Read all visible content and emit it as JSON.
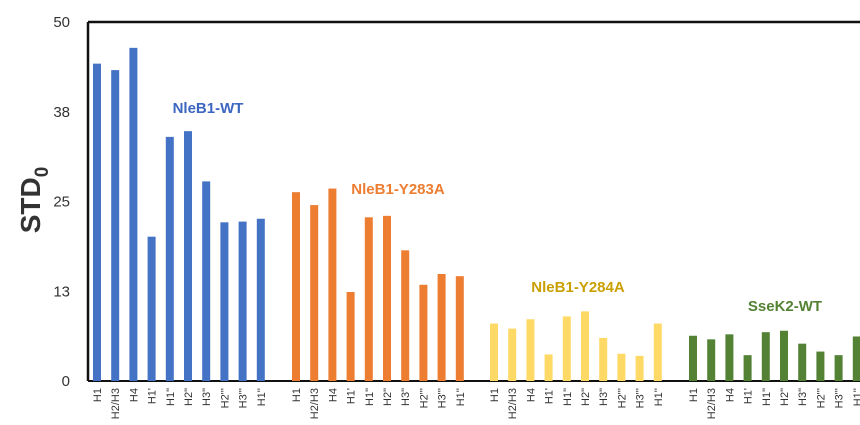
{
  "chart_data": {
    "type": "bar",
    "ylabel": "STD",
    "ylabel_subscript": "0",
    "ylim": [
      0,
      50
    ],
    "yticks": [
      "0",
      "13",
      "25",
      "38",
      "50"
    ],
    "ytick_values": [
      0,
      12.5,
      25,
      37.5,
      50
    ],
    "categories": [
      "H1",
      "H2/H3",
      "H4",
      "H1'",
      "H1\"",
      "H2\"",
      "H3\"",
      "H2'''",
      "H3'''",
      "H1''"
    ],
    "series": [
      {
        "name": "NleB1-WT",
        "color": "#4472C4",
        "label_color": "#3C66C0",
        "values": [
          44.2,
          43.3,
          46.4,
          20.1,
          34.0,
          34.8,
          27.8,
          22.1,
          22.2,
          22.6
        ]
      },
      {
        "name": "NleB1-Y283A",
        "color": "#ED7D31",
        "label_color": "#ED7D31",
        "values": [
          26.3,
          24.5,
          26.8,
          12.4,
          22.8,
          23.0,
          18.2,
          13.4,
          14.9,
          14.6
        ]
      },
      {
        "name": "NleB1-Y284A",
        "color": "#FFD966",
        "label_color": "#C9A000",
        "values": [
          8.0,
          7.3,
          8.6,
          3.7,
          9.0,
          9.7,
          6.0,
          3.8,
          3.5,
          8.0
        ]
      },
      {
        "name": "SseK2-WT",
        "color": "#548235",
        "label_color": "#548235",
        "values": [
          6.3,
          5.8,
          6.5,
          3.6,
          6.8,
          7.0,
          5.2,
          4.1,
          3.6,
          6.2
        ]
      }
    ]
  }
}
